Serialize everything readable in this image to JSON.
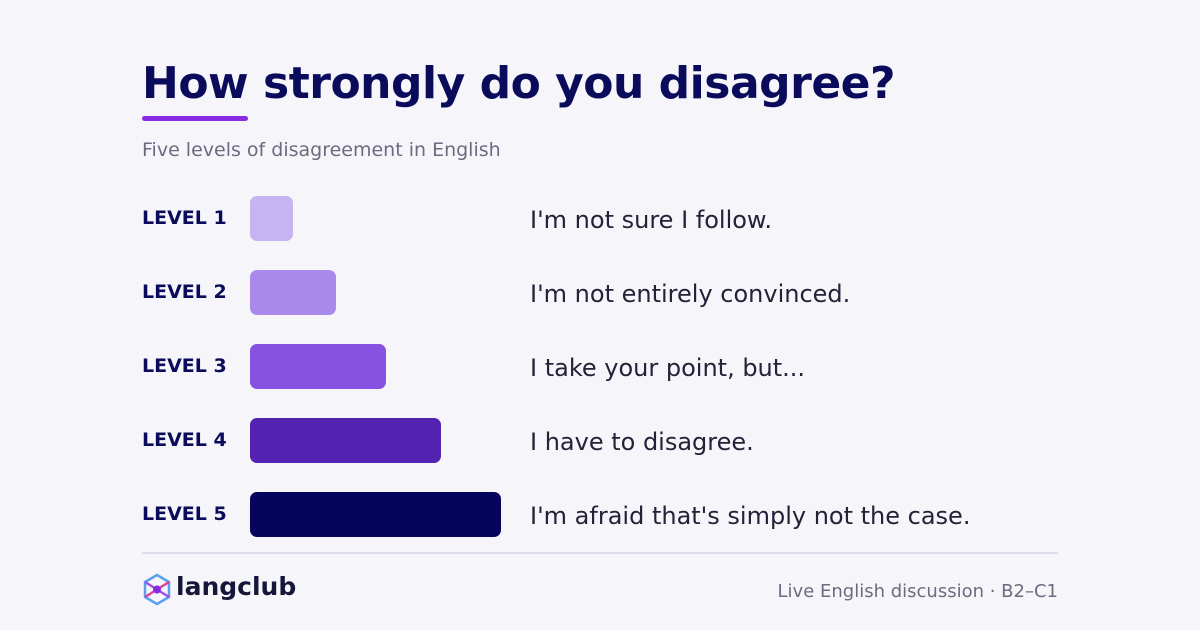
{
  "header": {
    "title": [
      "How",
      "strongly do you disagree?"
    ],
    "subtitle": "Five levels of disagreement in English"
  },
  "levels": [
    {
      "label": "LEVEL 1",
      "phrase": "I'm not sure I follow."
    },
    {
      "label": "LEVEL 2",
      "phrase": "I'm not entirely convinced."
    },
    {
      "label": "LEVEL 3",
      "phrase": "I take your point, but..."
    },
    {
      "label": "LEVEL 4",
      "phrase": "I have to disagree."
    },
    {
      "label": "LEVEL 5",
      "phrase": "I'm afraid that's simply not the case."
    }
  ],
  "footer": {
    "brand": "langclub",
    "tagline": "Live English discussion · B2–C1"
  }
}
